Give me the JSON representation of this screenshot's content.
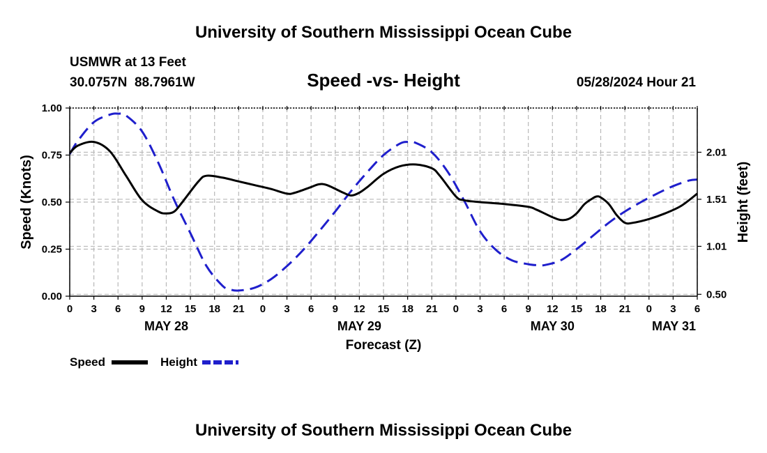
{
  "header": {
    "title": "University of Southern Mississippi Ocean Cube",
    "station": "USMWR at 13 Feet",
    "coords": "30.0757N  88.7961W",
    "subtitle": "Speed -vs- Height",
    "datetime": "05/28/2024 Hour 21"
  },
  "footer": {
    "title": "University of Southern Mississippi Ocean Cube"
  },
  "chart_data": {
    "type": "line",
    "title": "Speed -vs- Height",
    "xlabel": "Forecast (Z)",
    "ylabel_left": "Speed (Knots)",
    "ylabel_right": "Height (feet)",
    "x_unit": "hours since May 28 00Z",
    "xlim": [
      0,
      78
    ],
    "ylim_left": [
      0,
      1
    ],
    "ylim_right": [
      0.48,
      2.48
    ],
    "left_ticks": [
      {
        "value": 0,
        "label": "0.00"
      },
      {
        "value": 0.25,
        "label": "0.25"
      },
      {
        "value": 0.5,
        "label": "0.50"
      },
      {
        "value": 0.75,
        "label": "0.75"
      },
      {
        "value": 1,
        "label": "1.00"
      }
    ],
    "right_ticks": [
      {
        "value": 0.5,
        "label": "0.50"
      },
      {
        "value": 1.01,
        "label": "1.01"
      },
      {
        "value": 1.51,
        "label": "1.51"
      },
      {
        "value": 2.01,
        "label": "2.01"
      }
    ],
    "x_ticks": [
      {
        "value": 0,
        "label": "0"
      },
      {
        "value": 3,
        "label": "3"
      },
      {
        "value": 6,
        "label": "6"
      },
      {
        "value": 9,
        "label": "9"
      },
      {
        "value": 12,
        "label": "12"
      },
      {
        "value": 15,
        "label": "15"
      },
      {
        "value": 18,
        "label": "18"
      },
      {
        "value": 21,
        "label": "21"
      },
      {
        "value": 24,
        "label": "0"
      },
      {
        "value": 27,
        "label": "3"
      },
      {
        "value": 30,
        "label": "6"
      },
      {
        "value": 33,
        "label": "9"
      },
      {
        "value": 36,
        "label": "12"
      },
      {
        "value": 39,
        "label": "15"
      },
      {
        "value": 42,
        "label": "18"
      },
      {
        "value": 45,
        "label": "21"
      },
      {
        "value": 48,
        "label": "0"
      },
      {
        "value": 51,
        "label": "3"
      },
      {
        "value": 54,
        "label": "6"
      },
      {
        "value": 57,
        "label": "9"
      },
      {
        "value": 60,
        "label": "12"
      },
      {
        "value": 63,
        "label": "15"
      },
      {
        "value": 66,
        "label": "18"
      },
      {
        "value": 69,
        "label": "21"
      },
      {
        "value": 72,
        "label": "0"
      },
      {
        "value": 75,
        "label": "3"
      },
      {
        "value": 78,
        "label": "6"
      }
    ],
    "day_labels": [
      {
        "value": 12,
        "label": "MAY 28",
        "anchor": "middle"
      },
      {
        "value": 36,
        "label": "MAY 29",
        "anchor": "middle"
      },
      {
        "value": 60,
        "label": "MAY 30",
        "anchor": "middle"
      },
      {
        "value": 78,
        "label": "MAY 31",
        "anchor": "end"
      }
    ],
    "series": [
      {
        "name": "Speed",
        "axis": "left",
        "color": "#000000",
        "dash": "solid",
        "points": [
          [
            0,
            0.76
          ],
          [
            1,
            0.8
          ],
          [
            3,
            0.82
          ],
          [
            5,
            0.77
          ],
          [
            7,
            0.64
          ],
          [
            9,
            0.51
          ],
          [
            11,
            0.45
          ],
          [
            12,
            0.44
          ],
          [
            13,
            0.45
          ],
          [
            14,
            0.5
          ],
          [
            16,
            0.61
          ],
          [
            17,
            0.64
          ],
          [
            19,
            0.63
          ],
          [
            21,
            0.61
          ],
          [
            23,
            0.59
          ],
          [
            25,
            0.57
          ],
          [
            27,
            0.545
          ],
          [
            28,
            0.55
          ],
          [
            30,
            0.58
          ],
          [
            31,
            0.595
          ],
          [
            32,
            0.59
          ],
          [
            34,
            0.55
          ],
          [
            35,
            0.535
          ],
          [
            36,
            0.55
          ],
          [
            37,
            0.58
          ],
          [
            39,
            0.65
          ],
          [
            41,
            0.69
          ],
          [
            43,
            0.7
          ],
          [
            45,
            0.68
          ],
          [
            46,
            0.64
          ],
          [
            48,
            0.53
          ],
          [
            49,
            0.51
          ],
          [
            51,
            0.5
          ],
          [
            54,
            0.49
          ],
          [
            57,
            0.475
          ],
          [
            58,
            0.46
          ],
          [
            59,
            0.44
          ],
          [
            60,
            0.42
          ],
          [
            61,
            0.405
          ],
          [
            62,
            0.41
          ],
          [
            63,
            0.44
          ],
          [
            64,
            0.49
          ],
          [
            65,
            0.52
          ],
          [
            65.5,
            0.53
          ],
          [
            66,
            0.525
          ],
          [
            67,
            0.49
          ],
          [
            68,
            0.43
          ],
          [
            69,
            0.39
          ],
          [
            70,
            0.39
          ],
          [
            72,
            0.41
          ],
          [
            74,
            0.44
          ],
          [
            76,
            0.48
          ],
          [
            78,
            0.545
          ]
        ]
      },
      {
        "name": "Height",
        "axis": "right",
        "color": "#1f1fcc",
        "dash": "dashed",
        "points": [
          [
            0,
            1.99
          ],
          [
            1,
            2.13
          ],
          [
            3,
            2.33
          ],
          [
            5,
            2.41
          ],
          [
            6,
            2.42
          ],
          [
            7,
            2.4
          ],
          [
            9,
            2.23
          ],
          [
            11,
            1.9
          ],
          [
            13,
            1.5
          ],
          [
            15,
            1.15
          ],
          [
            17,
            0.8
          ],
          [
            19,
            0.59
          ],
          [
            20,
            0.55
          ],
          [
            21,
            0.54
          ],
          [
            23,
            0.57
          ],
          [
            25,
            0.66
          ],
          [
            27,
            0.8
          ],
          [
            29,
            0.97
          ],
          [
            31,
            1.17
          ],
          [
            33,
            1.38
          ],
          [
            35,
            1.6
          ],
          [
            37,
            1.8
          ],
          [
            39,
            1.98
          ],
          [
            41,
            2.1
          ],
          [
            42,
            2.12
          ],
          [
            43,
            2.11
          ],
          [
            45,
            2.01
          ],
          [
            47,
            1.8
          ],
          [
            49,
            1.5
          ],
          [
            51,
            1.17
          ],
          [
            53,
            0.97
          ],
          [
            55,
            0.86
          ],
          [
            57,
            0.82
          ],
          [
            58,
            0.81
          ],
          [
            59,
            0.81
          ],
          [
            61,
            0.86
          ],
          [
            63,
            0.98
          ],
          [
            65,
            1.12
          ],
          [
            67,
            1.26
          ],
          [
            69,
            1.38
          ],
          [
            71,
            1.48
          ],
          [
            73,
            1.57
          ],
          [
            75,
            1.65
          ],
          [
            77,
            1.71
          ],
          [
            78,
            1.72
          ]
        ]
      }
    ],
    "legend": [
      {
        "label": "Speed",
        "color": "#000000",
        "dash": "solid"
      },
      {
        "label": "Height",
        "color": "#1f1fcc",
        "dash": "dashed"
      }
    ],
    "grid": true
  }
}
